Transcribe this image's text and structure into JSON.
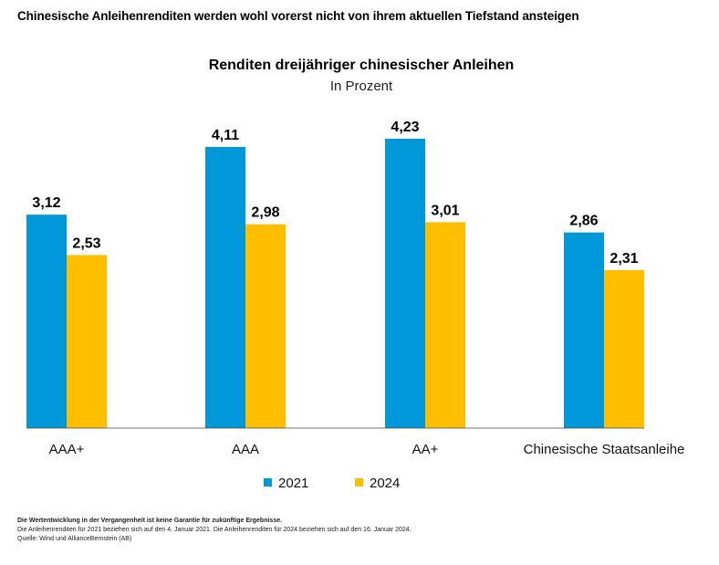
{
  "headline": "Chinesische Anleihenrenditen werden wohl vorerst nicht von ihrem aktuellen Tiefstand ansteigen",
  "chart_data": {
    "type": "bar",
    "title": "Renditen dreijähriger chinesischer Anleihen",
    "subtitle": "In Prozent",
    "xlabel": "",
    "ylabel": "",
    "ylim": [
      0,
      4.23
    ],
    "grid": false,
    "legend_position": "bottom-center",
    "categories": [
      "AAA+",
      "AAA",
      "AA+",
      "Chinesische Staatsanleihe"
    ],
    "series": [
      {
        "name": "2021",
        "color": "#0098D8",
        "values": [
          3.12,
          4.11,
          4.23,
          2.86
        ],
        "labels": [
          "3,12",
          "4,11",
          "4,23",
          "2,86"
        ]
      },
      {
        "name": "2024",
        "color": "#FFBF00",
        "values": [
          2.53,
          2.98,
          3.01,
          2.31
        ],
        "labels": [
          "2,53",
          "2,98",
          "3,01",
          "2,31"
        ]
      }
    ]
  },
  "footnotes": {
    "disclaimer": "Die Wertentwicklung in der Vergangenheit ist keine Garantie für zukünftige Ergebnisse.",
    "note": "Die Anleihenrenditen für 2021 beziehen sich auf den 4. Januar 2021. Die Anleihenrenditen für 2024 beziehen sich auf den 16. Januar 2024.",
    "source": "Quelle: Wind und AllianceBernstein (AB)"
  }
}
